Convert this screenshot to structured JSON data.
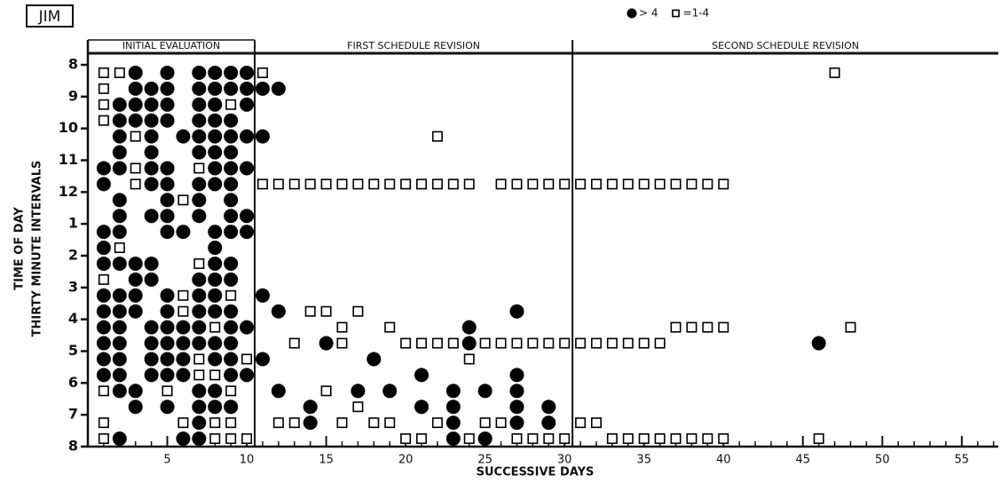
{
  "chart_data": {
    "type": "scatter",
    "subject": "JIM",
    "xlabel": "SUCCESSIVE DAYS",
    "ylabel": [
      "TIME OF DAY",
      "THIRTY MINUTE INTERVALS"
    ],
    "phases": [
      "INITIAL EVALUATION",
      "FIRST SCHEDULE REVISION",
      "SECOND SCHEDULE REVISION"
    ],
    "phase_bounds": [
      10.5,
      30.5
    ],
    "legend": "top-right",
    "xlim": [
      0,
      57.3
    ],
    "xticks": [
      5,
      10,
      15,
      20,
      25,
      30,
      35,
      40,
      45,
      50,
      55
    ],
    "xminor_ticks": [
      1,
      2,
      3,
      4,
      5,
      6,
      7,
      8,
      9,
      10,
      11,
      12,
      13,
      14,
      15,
      16,
      17,
      18,
      19,
      20,
      21,
      22,
      23,
      24,
      25,
      26,
      27,
      28,
      29,
      30,
      31,
      32,
      33,
      34,
      35,
      36,
      37,
      38,
      39,
      40,
      41,
      42,
      43,
      44,
      45,
      46,
      47,
      48,
      49,
      50,
      51,
      52,
      53,
      54,
      55,
      56,
      57
    ],
    "ylim": [
      12,
      0
    ],
    "yticks": [
      {
        "value": 0,
        "label": "8"
      },
      {
        "value": 1,
        "label": "9"
      },
      {
        "value": 2,
        "label": "10"
      },
      {
        "value": 3,
        "label": "11"
      },
      {
        "value": 4,
        "label": "12"
      },
      {
        "value": 5,
        "label": "1"
      },
      {
        "value": 6,
        "label": "2"
      },
      {
        "value": 7,
        "label": "3"
      },
      {
        "value": 8,
        "label": "4"
      },
      {
        "value": 9,
        "label": "5"
      },
      {
        "value": 10,
        "label": "6"
      },
      {
        "value": 11,
        "label": "7"
      },
      {
        "value": 12,
        "label": "8"
      }
    ],
    "series": [
      {
        "name": "> 4",
        "marker": "circle",
        "color": "#000000",
        "x": [
          3,
          5,
          7,
          8,
          9,
          10,
          3,
          4,
          5,
          7,
          8,
          9,
          10,
          11,
          12,
          2,
          3,
          4,
          5,
          7,
          8,
          10,
          2,
          3,
          4,
          5,
          7,
          8,
          9,
          2,
          4,
          6,
          7,
          8,
          9,
          10,
          11,
          2,
          4,
          7,
          8,
          9,
          1,
          2,
          4,
          5,
          8,
          9,
          10,
          1,
          4,
          5,
          7,
          8,
          9,
          2,
          5,
          7,
          9,
          2,
          4,
          5,
          7,
          9,
          10,
          1,
          2,
          5,
          6,
          8,
          9,
          10,
          1,
          8,
          1,
          2,
          3,
          4,
          8,
          9,
          3,
          4,
          7,
          8,
          9,
          1,
          2,
          3,
          5,
          7,
          8,
          11,
          1,
          2,
          3,
          5,
          7,
          8,
          9,
          12,
          27,
          1,
          2,
          4,
          5,
          6,
          7,
          9,
          10,
          24,
          1,
          2,
          4,
          5,
          6,
          7,
          8,
          9,
          15,
          24,
          46,
          1,
          2,
          4,
          5,
          6,
          8,
          9,
          11,
          18,
          1,
          2,
          4,
          5,
          6,
          9,
          10,
          21,
          27,
          2,
          3,
          7,
          8,
          12,
          17,
          19,
          23,
          25,
          27,
          3,
          5,
          7,
          8,
          9,
          14,
          21,
          23,
          27,
          29,
          7,
          14,
          23,
          27,
          29,
          2,
          6,
          7,
          23,
          25
        ],
        "values": [
          0.25,
          0.25,
          0.25,
          0.25,
          0.25,
          0.25,
          0.75,
          0.75,
          0.75,
          0.75,
          0.75,
          0.75,
          0.75,
          0.75,
          0.75,
          1.25,
          1.25,
          1.25,
          1.25,
          1.25,
          1.25,
          1.25,
          1.75,
          1.75,
          1.75,
          1.75,
          1.75,
          1.75,
          1.75,
          2.25,
          2.25,
          2.25,
          2.25,
          2.25,
          2.25,
          2.25,
          2.25,
          2.75,
          2.75,
          2.75,
          2.75,
          2.75,
          3.25,
          3.25,
          3.25,
          3.25,
          3.25,
          3.25,
          3.25,
          3.75,
          3.75,
          3.75,
          3.75,
          3.75,
          3.75,
          4.25,
          4.25,
          4.25,
          4.25,
          4.75,
          4.75,
          4.75,
          4.75,
          4.75,
          4.75,
          5.25,
          5.25,
          5.25,
          5.25,
          5.25,
          5.25,
          5.25,
          5.75,
          5.75,
          6.25,
          6.25,
          6.25,
          6.25,
          6.25,
          6.25,
          6.75,
          6.75,
          6.75,
          6.75,
          6.75,
          7.25,
          7.25,
          7.25,
          7.25,
          7.25,
          7.25,
          7.25,
          7.75,
          7.75,
          7.75,
          7.75,
          7.75,
          7.75,
          7.75,
          7.75,
          7.75,
          8.25,
          8.25,
          8.25,
          8.25,
          8.25,
          8.25,
          8.25,
          8.25,
          8.25,
          8.75,
          8.75,
          8.75,
          8.75,
          8.75,
          8.75,
          8.75,
          8.75,
          8.75,
          8.75,
          8.75,
          9.25,
          9.25,
          9.25,
          9.25,
          9.25,
          9.25,
          9.25,
          9.25,
          9.25,
          9.75,
          9.75,
          9.75,
          9.75,
          9.75,
          9.75,
          9.75,
          9.75,
          9.75,
          10.25,
          10.25,
          10.25,
          10.25,
          10.25,
          10.25,
          10.25,
          10.25,
          10.25,
          10.25,
          10.75,
          10.75,
          10.75,
          10.75,
          10.75,
          10.75,
          10.75,
          10.75,
          10.75,
          10.75,
          11.25,
          11.25,
          11.25,
          11.25,
          11.25,
          11.75,
          11.75,
          11.75,
          11.75,
          11.75
        ]
      },
      {
        "name": "=1-4",
        "marker": "square",
        "color": "#000000",
        "x": [
          1,
          2,
          11,
          47,
          1,
          1,
          9,
          1,
          3,
          22,
          3,
          7,
          3,
          11,
          12,
          13,
          14,
          15,
          16,
          17,
          18,
          19,
          20,
          21,
          22,
          23,
          24,
          26,
          27,
          28,
          29,
          30,
          31,
          32,
          33,
          34,
          35,
          36,
          37,
          38,
          39,
          40,
          6,
          2,
          7,
          1,
          6,
          9,
          6,
          14,
          15,
          17,
          8,
          16,
          19,
          37,
          38,
          39,
          40,
          48,
          13,
          16,
          20,
          21,
          22,
          23,
          25,
          26,
          27,
          28,
          29,
          30,
          31,
          32,
          33,
          34,
          35,
          36,
          7,
          10,
          24,
          7,
          8,
          1,
          5,
          9,
          15,
          17,
          1,
          6,
          8,
          9,
          12,
          13,
          16,
          18,
          19,
          22,
          25,
          26,
          31,
          32,
          1,
          8,
          9,
          10,
          20,
          21,
          24,
          27,
          28,
          29,
          30,
          33,
          34,
          35,
          36,
          37,
          38,
          39,
          40,
          46
        ],
        "values": [
          0.25,
          0.25,
          0.25,
          0.25,
          0.75,
          1.25,
          1.25,
          1.75,
          2.25,
          2.25,
          3.25,
          3.25,
          3.75,
          3.75,
          3.75,
          3.75,
          3.75,
          3.75,
          3.75,
          3.75,
          3.75,
          3.75,
          3.75,
          3.75,
          3.75,
          3.75,
          3.75,
          3.75,
          3.75,
          3.75,
          3.75,
          3.75,
          3.75,
          3.75,
          3.75,
          3.75,
          3.75,
          3.75,
          3.75,
          3.75,
          3.75,
          3.75,
          4.25,
          5.75,
          6.25,
          6.75,
          7.25,
          7.25,
          7.75,
          7.75,
          7.75,
          7.75,
          8.25,
          8.25,
          8.25,
          8.25,
          8.25,
          8.25,
          8.25,
          8.25,
          8.75,
          8.75,
          8.75,
          8.75,
          8.75,
          8.75,
          8.75,
          8.75,
          8.75,
          8.75,
          8.75,
          8.75,
          8.75,
          8.75,
          8.75,
          8.75,
          8.75,
          8.75,
          9.25,
          9.25,
          9.25,
          9.75,
          9.75,
          10.25,
          10.25,
          10.25,
          10.25,
          10.75,
          11.25,
          11.25,
          11.25,
          11.25,
          11.25,
          11.25,
          11.25,
          11.25,
          11.25,
          11.25,
          11.25,
          11.25,
          11.25,
          11.25,
          11.75,
          11.75,
          11.75,
          11.75,
          11.75,
          11.75,
          11.75,
          11.75,
          11.75,
          11.75,
          11.75,
          11.75,
          11.75,
          11.75,
          11.75,
          11.75,
          11.75,
          11.75,
          11.75,
          11.75
        ]
      }
    ]
  }
}
